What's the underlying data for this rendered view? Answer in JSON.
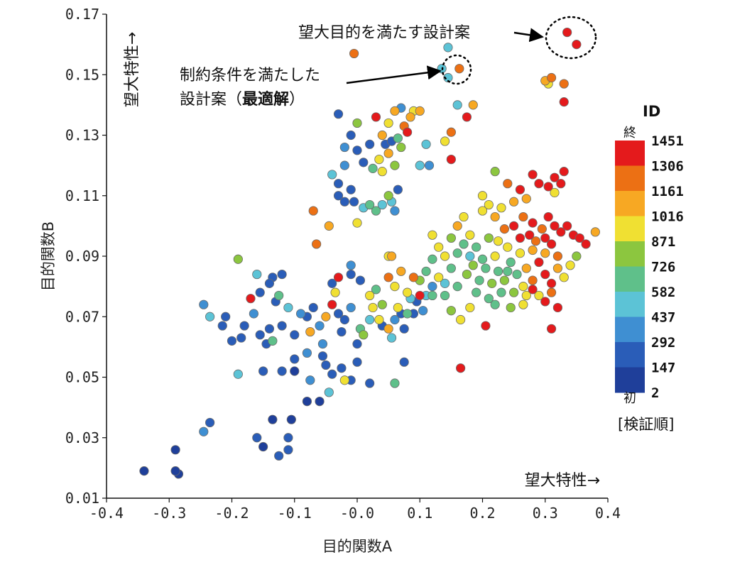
{
  "chart_data": {
    "type": "scatter",
    "xlabel": "目的関数A",
    "ylabel": "目的関数B",
    "xlim": [
      -0.4,
      0.4
    ],
    "ylim": [
      0.01,
      0.17
    ],
    "x_ticks": [
      "-0.4",
      "-0.3",
      "-0.2",
      "-0.1",
      "-0.0",
      "0.1",
      "0.2",
      "0.3",
      "0.4"
    ],
    "y_ticks": [
      "0.01",
      "0.03",
      "0.05",
      "0.07",
      "0.09",
      "0.11",
      "0.13",
      "0.15",
      "0.17"
    ],
    "grid": false,
    "annotations": {
      "y_direction": "望大特性→",
      "x_direction": "望大特性→",
      "pareto": "望大目的を満たす設計案",
      "optimal_line1": "制約条件を満たした",
      "optimal_line2_a": "設計案（",
      "optimal_line2_b": "最適解",
      "optimal_line2_c": "）"
    },
    "highlight_points": {
      "pareto": [
        [
          0.335,
          0.164
        ],
        [
          0.35,
          0.16
        ]
      ],
      "optimal": [
        [
          0.163,
          0.152
        ]
      ]
    },
    "colorbar": {
      "title": "ID",
      "end_label": "終",
      "start_label": "初",
      "footer": "[検証順]",
      "labels": [
        "1451",
        "1306",
        "1161",
        "1016",
        "871",
        "726",
        "582",
        "437",
        "292",
        "147",
        "2"
      ],
      "colors": [
        "#e41a1c",
        "#ec7014",
        "#f7a823",
        "#f0e032",
        "#8cc63f",
        "#5fc08a",
        "#5cc3d6",
        "#3f8fd2",
        "#2a5db8",
        "#1f3f9a"
      ]
    },
    "points": [
      [
        -0.34,
        0.019,
        2
      ],
      [
        -0.29,
        0.019,
        20
      ],
      [
        -0.285,
        0.018,
        10
      ],
      [
        -0.29,
        0.026,
        40
      ],
      [
        -0.245,
        0.032,
        350
      ],
      [
        -0.235,
        0.035,
        120
      ],
      [
        -0.16,
        0.03,
        100
      ],
      [
        -0.15,
        0.027,
        80
      ],
      [
        -0.135,
        0.036,
        60
      ],
      [
        -0.125,
        0.024,
        90
      ],
      [
        -0.11,
        0.026,
        110
      ],
      [
        -0.105,
        0.036,
        70
      ],
      [
        -0.11,
        0.03,
        130
      ],
      [
        -0.19,
        0.051,
        420
      ],
      [
        -0.15,
        0.052,
        90
      ],
      [
        -0.12,
        0.052,
        100
      ],
      [
        -0.1,
        0.056,
        140
      ],
      [
        -0.1,
        0.052,
        60
      ],
      [
        -0.08,
        0.042,
        30
      ],
      [
        -0.075,
        0.049,
        400
      ],
      [
        -0.06,
        0.042,
        50
      ],
      [
        -0.055,
        0.057,
        160
      ],
      [
        -0.05,
        0.054,
        200
      ],
      [
        -0.04,
        0.051,
        140
      ],
      [
        -0.025,
        0.053,
        180
      ],
      [
        -0.045,
        0.045,
        420
      ],
      [
        -0.02,
        0.049,
        1000
      ],
      [
        -0.01,
        0.049,
        100
      ],
      [
        0.0,
        0.055,
        130
      ],
      [
        0.02,
        0.048,
        120
      ],
      [
        0.06,
        0.048,
        600
      ],
      [
        0.075,
        0.055,
        150
      ],
      [
        -0.245,
        0.074,
        300
      ],
      [
        -0.235,
        0.07,
        500
      ],
      [
        -0.215,
        0.067,
        150
      ],
      [
        -0.21,
        0.07,
        120
      ],
      [
        -0.2,
        0.062,
        100
      ],
      [
        -0.185,
        0.063,
        130
      ],
      [
        -0.18,
        0.067,
        160
      ],
      [
        -0.17,
        0.076,
        1400
      ],
      [
        -0.165,
        0.071,
        250
      ],
      [
        -0.155,
        0.064,
        200
      ],
      [
        -0.145,
        0.061,
        120
      ],
      [
        -0.14,
        0.066,
        100
      ],
      [
        -0.135,
        0.062,
        700
      ],
      [
        -0.13,
        0.075,
        180
      ],
      [
        -0.125,
        0.077,
        650
      ],
      [
        -0.12,
        0.067,
        140
      ],
      [
        -0.11,
        0.073,
        450
      ],
      [
        -0.1,
        0.064,
        160
      ],
      [
        -0.09,
        0.071,
        300
      ],
      [
        -0.08,
        0.07,
        200
      ],
      [
        -0.075,
        0.065,
        1200
      ],
      [
        -0.07,
        0.073,
        150
      ],
      [
        -0.06,
        0.067,
        250
      ],
      [
        -0.055,
        0.061,
        400
      ],
      [
        -0.05,
        0.07,
        1150
      ],
      [
        -0.04,
        0.074,
        1450
      ],
      [
        -0.03,
        0.071,
        100
      ],
      [
        -0.025,
        0.065,
        200
      ],
      [
        -0.02,
        0.069,
        180
      ],
      [
        -0.01,
        0.073,
        300
      ],
      [
        0.0,
        0.061,
        130
      ],
      [
        0.005,
        0.066,
        650
      ],
      [
        0.01,
        0.064,
        800
      ],
      [
        0.02,
        0.069,
        450
      ],
      [
        0.025,
        0.073,
        950
      ],
      [
        0.035,
        0.069,
        900
      ],
      [
        0.04,
        0.067,
        130
      ],
      [
        0.05,
        0.066,
        1100
      ],
      [
        0.055,
        0.063,
        500
      ],
      [
        0.06,
        0.069,
        300
      ],
      [
        0.065,
        0.073,
        1000
      ],
      [
        0.07,
        0.071,
        180
      ],
      [
        0.08,
        0.071,
        600
      ],
      [
        0.09,
        0.071,
        150
      ],
      [
        -0.19,
        0.089,
        750
      ],
      [
        -0.16,
        0.084,
        500
      ],
      [
        -0.155,
        0.078,
        150
      ],
      [
        -0.14,
        0.081,
        200
      ],
      [
        -0.135,
        0.083,
        130
      ],
      [
        -0.12,
        0.084,
        170
      ],
      [
        -0.04,
        0.081,
        100
      ],
      [
        -0.035,
        0.078,
        1000
      ],
      [
        -0.03,
        0.083,
        1400
      ],
      [
        -0.01,
        0.084,
        200
      ],
      [
        -0.01,
        0.087,
        300
      ],
      [
        0.005,
        0.082,
        150
      ],
      [
        0.02,
        0.077,
        1000
      ],
      [
        0.03,
        0.079,
        700
      ],
      [
        0.04,
        0.074,
        800
      ],
      [
        0.05,
        0.083,
        1300
      ],
      [
        0.055,
        0.09,
        1100
      ],
      [
        0.06,
        0.08,
        900
      ],
      [
        0.07,
        0.085,
        1100
      ],
      [
        0.08,
        0.078,
        1000
      ],
      [
        0.09,
        0.083,
        1300
      ],
      [
        0.095,
        0.075,
        200
      ],
      [
        -0.065,
        0.094,
        1300
      ],
      [
        -0.045,
        0.1,
        1200
      ],
      [
        -0.07,
        0.105,
        1350
      ],
      [
        0.0,
        0.101,
        1000
      ],
      [
        0.05,
        0.09,
        1000
      ],
      [
        -0.03,
        0.11,
        100
      ],
      [
        -0.02,
        0.108,
        150
      ],
      [
        -0.03,
        0.114,
        200
      ],
      [
        -0.04,
        0.117,
        470
      ],
      [
        -0.02,
        0.12,
        250
      ],
      [
        -0.01,
        0.112,
        180
      ],
      [
        -0.005,
        0.108,
        130
      ],
      [
        0.01,
        0.106,
        500
      ],
      [
        0.02,
        0.107,
        700
      ],
      [
        0.03,
        0.105,
        600
      ],
      [
        0.04,
        0.107,
        450
      ],
      [
        0.05,
        0.11,
        800
      ],
      [
        0.055,
        0.108,
        500
      ],
      [
        0.065,
        0.112,
        200
      ],
      [
        0.06,
        0.105,
        300
      ],
      [
        -0.02,
        0.126,
        300
      ],
      [
        -0.01,
        0.13,
        150
      ],
      [
        0.0,
        0.125,
        100
      ],
      [
        0.01,
        0.121,
        200
      ],
      [
        0.02,
        0.127,
        170
      ],
      [
        0.025,
        0.119,
        600
      ],
      [
        0.035,
        0.122,
        900
      ],
      [
        0.04,
        0.118,
        1000
      ],
      [
        0.05,
        0.124,
        1100
      ],
      [
        0.06,
        0.12,
        800
      ],
      [
        -0.0,
        0.134,
        800
      ],
      [
        0.03,
        0.136,
        1451
      ],
      [
        0.04,
        0.13,
        1200
      ],
      [
        0.05,
        0.134,
        1000
      ],
      [
        0.055,
        0.128,
        200
      ],
      [
        0.06,
        0.138,
        1100
      ],
      [
        0.07,
        0.139,
        300
      ],
      [
        0.075,
        0.133,
        1300
      ],
      [
        0.08,
        0.131,
        1451
      ],
      [
        0.085,
        0.136,
        1200
      ],
      [
        0.07,
        0.126,
        800
      ],
      [
        0.065,
        0.129,
        700
      ],
      [
        0.045,
        0.127,
        100
      ],
      [
        -0.03,
        0.137,
        200
      ],
      [
        0.09,
        0.138,
        1000
      ],
      [
        0.1,
        0.138,
        1100
      ],
      [
        0.1,
        0.12,
        500
      ],
      [
        0.115,
        0.12,
        300
      ],
      [
        0.11,
        0.127,
        450
      ],
      [
        0.14,
        0.128,
        1000
      ],
      [
        0.15,
        0.131,
        1300
      ],
      [
        0.175,
        0.136,
        1400
      ],
      [
        0.185,
        0.14,
        1200
      ],
      [
        0.16,
        0.14,
        500
      ],
      [
        0.15,
        0.122,
        1451
      ],
      [
        -0.005,
        0.157,
        1250
      ],
      [
        0.135,
        0.152,
        450
      ],
      [
        0.145,
        0.149,
        500
      ],
      [
        0.145,
        0.159,
        550
      ],
      [
        0.3,
        0.148,
        1100
      ],
      [
        0.305,
        0.147,
        1000
      ],
      [
        0.33,
        0.147,
        1300
      ],
      [
        0.31,
        0.149,
        1350
      ],
      [
        0.33,
        0.141,
        1400
      ],
      [
        -0.08,
        0.058,
        400
      ],
      [
        0.075,
        0.066,
        200
      ],
      [
        0.1,
        0.077,
        1451
      ],
      [
        0.12,
        0.077,
        600
      ],
      [
        0.14,
        0.077,
        700
      ],
      [
        0.15,
        0.072,
        750
      ],
      [
        0.165,
        0.069,
        1000
      ],
      [
        0.18,
        0.073,
        900
      ],
      [
        0.205,
        0.067,
        1451
      ],
      [
        0.22,
        0.074,
        700
      ],
      [
        0.245,
        0.073,
        800
      ],
      [
        0.265,
        0.074,
        1000
      ],
      [
        0.31,
        0.066,
        1451
      ],
      [
        0.32,
        0.073,
        1400
      ],
      [
        0.165,
        0.053,
        1451
      ],
      [
        0.2,
        0.11,
        1000
      ],
      [
        0.22,
        0.118,
        750
      ],
      [
        0.24,
        0.114,
        1300
      ],
      [
        0.26,
        0.112,
        1400
      ],
      [
        0.28,
        0.117,
        1451
      ],
      [
        0.29,
        0.114,
        1400
      ],
      [
        0.305,
        0.113,
        1451
      ],
      [
        0.315,
        0.116,
        1451
      ],
      [
        0.325,
        0.114,
        1400
      ],
      [
        0.33,
        0.118,
        1451
      ],
      [
        0.315,
        0.111,
        1000
      ],
      [
        0.27,
        0.109,
        1200
      ],
      [
        0.25,
        0.108,
        1100
      ],
      [
        0.23,
        0.106,
        1000
      ],
      [
        0.21,
        0.107,
        900
      ],
      [
        0.17,
        0.103,
        1000
      ],
      [
        0.16,
        0.1,
        1050
      ],
      [
        0.18,
        0.097,
        900
      ],
      [
        0.2,
        0.105,
        1000
      ],
      [
        0.22,
        0.103,
        1200
      ],
      [
        0.235,
        0.099,
        1300
      ],
      [
        0.25,
        0.1,
        1450
      ],
      [
        0.265,
        0.103,
        1300
      ],
      [
        0.28,
        0.101,
        1451
      ],
      [
        0.295,
        0.099,
        1350
      ],
      [
        0.305,
        0.103,
        1451
      ],
      [
        0.315,
        0.1,
        1451
      ],
      [
        0.325,
        0.098,
        1451
      ],
      [
        0.335,
        0.1,
        1450
      ],
      [
        0.345,
        0.097,
        1400
      ],
      [
        0.355,
        0.096,
        1450
      ],
      [
        0.365,
        0.094,
        1451
      ],
      [
        0.38,
        0.098,
        1050
      ],
      [
        0.26,
        0.096,
        1451
      ],
      [
        0.275,
        0.097,
        1451
      ],
      [
        0.285,
        0.095,
        1300
      ],
      [
        0.3,
        0.096,
        1451
      ],
      [
        0.31,
        0.094,
        1400
      ],
      [
        0.24,
        0.093,
        1000
      ],
      [
        0.225,
        0.095,
        900
      ],
      [
        0.21,
        0.096,
        800
      ],
      [
        0.19,
        0.093,
        700
      ],
      [
        0.17,
        0.094,
        600
      ],
      [
        0.15,
        0.096,
        850
      ],
      [
        0.14,
        0.09,
        900
      ],
      [
        0.12,
        0.089,
        700
      ],
      [
        0.11,
        0.085,
        600
      ],
      [
        0.1,
        0.082,
        800
      ],
      [
        0.13,
        0.083,
        900
      ],
      [
        0.15,
        0.086,
        700
      ],
      [
        0.16,
        0.08,
        650
      ],
      [
        0.175,
        0.084,
        800
      ],
      [
        0.185,
        0.087,
        750
      ],
      [
        0.195,
        0.082,
        700
      ],
      [
        0.205,
        0.086,
        650
      ],
      [
        0.215,
        0.081,
        800
      ],
      [
        0.225,
        0.085,
        700
      ],
      [
        0.235,
        0.082,
        760
      ],
      [
        0.245,
        0.088,
        720
      ],
      [
        0.255,
        0.084,
        680
      ],
      [
        0.265,
        0.08,
        900
      ],
      [
        0.27,
        0.086,
        1050
      ],
      [
        0.28,
        0.082,
        1300
      ],
      [
        0.29,
        0.088,
        1400
      ],
      [
        0.3,
        0.084,
        1451
      ],
      [
        0.31,
        0.081,
        1400
      ],
      [
        0.32,
        0.086,
        1200
      ],
      [
        0.33,
        0.083,
        1000
      ],
      [
        0.34,
        0.087,
        900
      ],
      [
        0.35,
        0.09,
        800
      ],
      [
        0.22,
        0.09,
        900
      ],
      [
        0.2,
        0.089,
        600
      ],
      [
        0.18,
        0.09,
        500
      ],
      [
        0.16,
        0.091,
        700
      ],
      [
        0.13,
        0.093,
        1000
      ],
      [
        0.12,
        0.097,
        900
      ],
      [
        0.19,
        0.078,
        650
      ],
      [
        0.21,
        0.076,
        700
      ],
      [
        0.23,
        0.078,
        680
      ],
      [
        0.25,
        0.078,
        760
      ],
      [
        0.27,
        0.077,
        900
      ],
      [
        0.29,
        0.077,
        1000
      ],
      [
        0.31,
        0.078,
        1300
      ],
      [
        0.28,
        0.079,
        1451
      ],
      [
        0.3,
        0.075,
        1451
      ],
      [
        0.24,
        0.085,
        700
      ],
      [
        0.26,
        0.091,
        1000
      ],
      [
        0.28,
        0.092,
        1100
      ],
      [
        0.3,
        0.091,
        1200
      ],
      [
        0.32,
        0.09,
        1300
      ],
      [
        0.14,
        0.081,
        450
      ],
      [
        0.12,
        0.08,
        300
      ],
      [
        0.11,
        0.077,
        500
      ],
      [
        0.105,
        0.072,
        400
      ],
      [
        0.085,
        0.076,
        500
      ]
    ]
  }
}
